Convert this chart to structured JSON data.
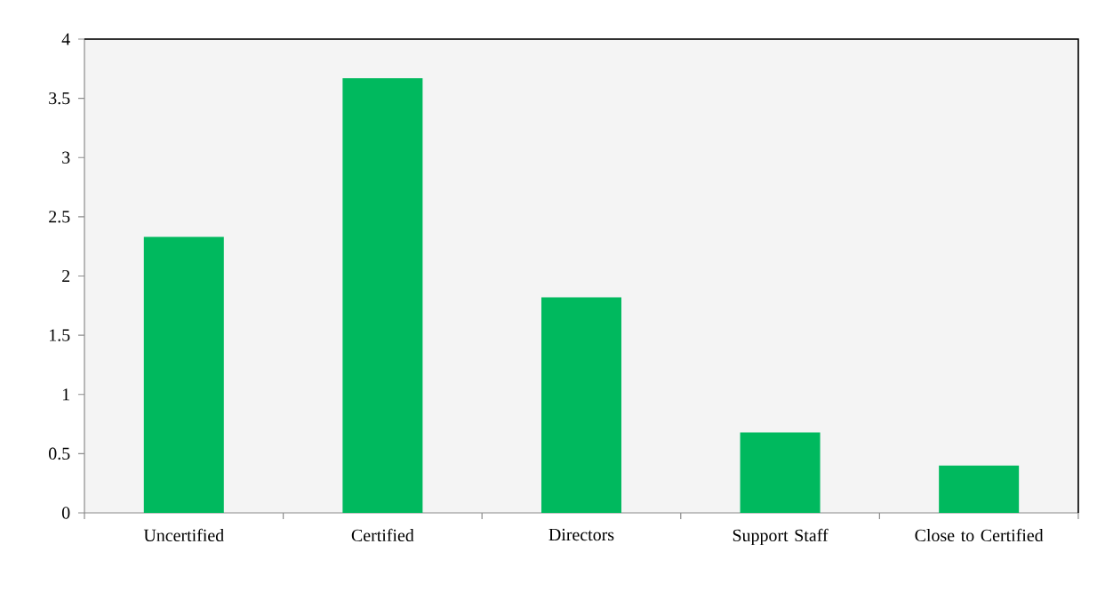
{
  "chart_data": {
    "type": "bar",
    "categories": [
      "Uncertified",
      "Certified",
      "Directors",
      "Support Staff",
      "Close to Certified"
    ],
    "values": [
      2.33,
      3.67,
      1.82,
      0.68,
      0.4
    ],
    "color": "#00b95e",
    "ylim": [
      0,
      4
    ],
    "yticks": [
      0,
      0.5,
      1,
      1.5,
      2,
      2.5,
      3,
      3.5,
      4
    ],
    "grid": false
  }
}
